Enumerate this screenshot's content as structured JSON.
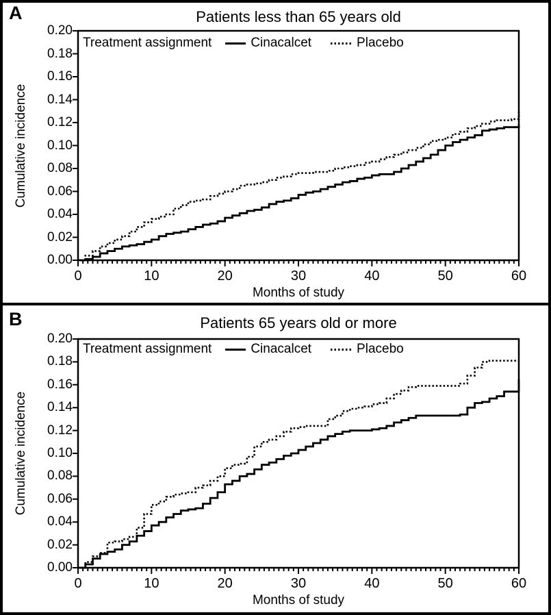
{
  "figure": {
    "background": "#ffffff",
    "line_color": "#000000",
    "panel_labels": [
      "A",
      "B"
    ]
  },
  "chart_data": [
    {
      "panel_label": "A",
      "type": "line",
      "subtype": "step-cumulative-incidence",
      "title": "Patients less than 65 years old",
      "xlabel": "Months of study",
      "ylabel": "Cumulative incidence",
      "legend_title": "Treatment assignment",
      "legend_position": "inside-top-left",
      "grid": false,
      "xlim": [
        0,
        60
      ],
      "ylim": [
        0,
        0.2
      ],
      "xticks": [
        0,
        10,
        20,
        30,
        40,
        50,
        60
      ],
      "yticks": [
        "0.20",
        "0.18",
        "0.16",
        "0.14",
        "0.12",
        "0.10",
        "0.08",
        "0.06",
        "0.04",
        "0.02",
        "0.00"
      ],
      "x_minor_tick_interval_months": 0.6667,
      "months": [
        0,
        1,
        2,
        3,
        4,
        5,
        6,
        7,
        8,
        9,
        10,
        11,
        12,
        13,
        14,
        15,
        16,
        17,
        18,
        19,
        20,
        21,
        22,
        23,
        24,
        25,
        26,
        27,
        28,
        29,
        30,
        31,
        32,
        33,
        34,
        35,
        36,
        37,
        38,
        39,
        40,
        41,
        42,
        43,
        44,
        45,
        46,
        47,
        48,
        49,
        50,
        51,
        52,
        53,
        54,
        55,
        56,
        57,
        58,
        59,
        60
      ],
      "series": [
        {
          "name": "Cinacalcet",
          "style": "solid",
          "values": [
            0,
            0.001,
            0.003,
            0.006,
            0.008,
            0.01,
            0.012,
            0.013,
            0.014,
            0.016,
            0.018,
            0.021,
            0.023,
            0.024,
            0.025,
            0.027,
            0.029,
            0.031,
            0.032,
            0.034,
            0.037,
            0.039,
            0.041,
            0.043,
            0.044,
            0.046,
            0.049,
            0.051,
            0.052,
            0.054,
            0.057,
            0.059,
            0.06,
            0.062,
            0.064,
            0.066,
            0.068,
            0.069,
            0.071,
            0.072,
            0.074,
            0.075,
            0.075,
            0.077,
            0.08,
            0.083,
            0.086,
            0.089,
            0.092,
            0.096,
            0.1,
            0.103,
            0.105,
            0.107,
            0.109,
            0.113,
            0.114,
            0.115,
            0.116,
            0.116,
            0.118
          ]
        },
        {
          "name": "Placebo",
          "style": "dotted",
          "values": [
            0,
            0.004,
            0.008,
            0.012,
            0.015,
            0.018,
            0.021,
            0.025,
            0.029,
            0.033,
            0.036,
            0.038,
            0.04,
            0.045,
            0.048,
            0.051,
            0.052,
            0.053,
            0.056,
            0.058,
            0.06,
            0.062,
            0.065,
            0.066,
            0.067,
            0.068,
            0.07,
            0.072,
            0.073,
            0.075,
            0.076,
            0.076,
            0.077,
            0.077,
            0.078,
            0.08,
            0.081,
            0.082,
            0.083,
            0.085,
            0.086,
            0.088,
            0.09,
            0.092,
            0.094,
            0.096,
            0.098,
            0.101,
            0.104,
            0.105,
            0.107,
            0.11,
            0.112,
            0.115,
            0.117,
            0.119,
            0.121,
            0.122,
            0.122,
            0.123,
            0.131
          ]
        }
      ]
    },
    {
      "panel_label": "B",
      "type": "line",
      "subtype": "step-cumulative-incidence",
      "title": "Patients 65 years old or more",
      "xlabel": "Months of study",
      "ylabel": "Cumulative incidence",
      "legend_title": "Treatment assignment",
      "legend_position": "inside-top-left",
      "grid": false,
      "xlim": [
        0,
        60
      ],
      "ylim": [
        0,
        0.2
      ],
      "xticks": [
        0,
        10,
        20,
        30,
        40,
        50,
        60
      ],
      "yticks": [
        "0.20",
        "0.18",
        "0.16",
        "0.14",
        "0.12",
        "0.10",
        "0.08",
        "0.06",
        "0.04",
        "0.02",
        "0.00"
      ],
      "x_minor_tick_interval_months": 0.6667,
      "months": [
        0,
        1,
        2,
        3,
        4,
        5,
        6,
        7,
        8,
        9,
        10,
        11,
        12,
        13,
        14,
        15,
        16,
        17,
        18,
        19,
        20,
        21,
        22,
        23,
        24,
        25,
        26,
        27,
        28,
        29,
        30,
        31,
        32,
        33,
        34,
        35,
        36,
        37,
        38,
        39,
        40,
        41,
        42,
        43,
        44,
        45,
        46,
        47,
        48,
        49,
        50,
        51,
        52,
        53,
        54,
        55,
        56,
        57,
        58,
        59,
        60
      ],
      "series": [
        {
          "name": "Cinacalcet",
          "style": "solid",
          "values": [
            0,
            0.003,
            0.008,
            0.012,
            0.014,
            0.016,
            0.02,
            0.023,
            0.028,
            0.032,
            0.037,
            0.04,
            0.044,
            0.047,
            0.05,
            0.051,
            0.052,
            0.056,
            0.061,
            0.066,
            0.073,
            0.076,
            0.08,
            0.082,
            0.086,
            0.09,
            0.092,
            0.095,
            0.098,
            0.1,
            0.103,
            0.106,
            0.109,
            0.112,
            0.115,
            0.117,
            0.119,
            0.12,
            0.12,
            0.12,
            0.121,
            0.122,
            0.124,
            0.127,
            0.129,
            0.131,
            0.133,
            0.133,
            0.133,
            0.133,
            0.133,
            0.133,
            0.134,
            0.14,
            0.144,
            0.145,
            0.148,
            0.15,
            0.154,
            0.154,
            0.165
          ]
        },
        {
          "name": "Placebo",
          "style": "dotted",
          "values": [
            0,
            0.005,
            0.01,
            0.013,
            0.022,
            0.023,
            0.025,
            0.027,
            0.035,
            0.047,
            0.055,
            0.058,
            0.062,
            0.064,
            0.065,
            0.066,
            0.07,
            0.072,
            0.076,
            0.08,
            0.087,
            0.09,
            0.091,
            0.097,
            0.106,
            0.11,
            0.112,
            0.115,
            0.119,
            0.122,
            0.123,
            0.124,
            0.124,
            0.124,
            0.13,
            0.133,
            0.137,
            0.139,
            0.14,
            0.141,
            0.143,
            0.144,
            0.148,
            0.152,
            0.155,
            0.158,
            0.159,
            0.159,
            0.159,
            0.159,
            0.159,
            0.159,
            0.161,
            0.168,
            0.175,
            0.18,
            0.181,
            0.181,
            0.181,
            0.181,
            0.181
          ]
        }
      ]
    }
  ]
}
